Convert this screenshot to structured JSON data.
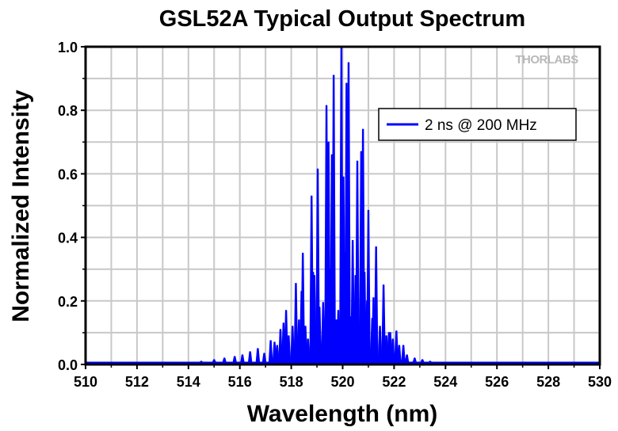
{
  "chart_data": {
    "type": "line",
    "title": "GSL52A Typical Output Spectrum",
    "xlabel": "Wavelength (nm)",
    "ylabel": "Normalized Intensity",
    "xlim": [
      510,
      530
    ],
    "ylim": [
      0,
      1.0
    ],
    "xticks": [
      "510",
      "512",
      "514",
      "516",
      "518",
      "520",
      "522",
      "524",
      "526",
      "528",
      "530"
    ],
    "yticks": [
      "0.0",
      "0.2",
      "0.4",
      "0.6",
      "0.8",
      "1.0"
    ],
    "grid": true,
    "legend_position": "top-right",
    "logo": "THORLABS",
    "series": [
      {
        "name": "2 ns @ 200 MHz",
        "color": "#0000ff",
        "peaks": [
          [
            514.5,
            0.01
          ],
          [
            515.0,
            0.015
          ],
          [
            515.4,
            0.02
          ],
          [
            515.8,
            0.025
          ],
          [
            516.1,
            0.03
          ],
          [
            516.4,
            0.04
          ],
          [
            516.7,
            0.05
          ],
          [
            516.95,
            0.035
          ],
          [
            517.2,
            0.075
          ],
          [
            517.35,
            0.07
          ],
          [
            517.45,
            0.06
          ],
          [
            517.58,
            0.11
          ],
          [
            517.7,
            0.13
          ],
          [
            517.8,
            0.17
          ],
          [
            517.9,
            0.09
          ],
          [
            518.05,
            0.12
          ],
          [
            518.18,
            0.255
          ],
          [
            518.3,
            0.14
          ],
          [
            518.4,
            0.23
          ],
          [
            518.45,
            0.35
          ],
          [
            518.55,
            0.12
          ],
          [
            518.65,
            0.08
          ],
          [
            518.79,
            0.53
          ],
          [
            518.85,
            0.29
          ],
          [
            518.9,
            0.28
          ],
          [
            519.03,
            0.615
          ],
          [
            519.1,
            0.18
          ],
          [
            519.24,
            0.195
          ],
          [
            519.3,
            0.1
          ],
          [
            519.37,
            0.815
          ],
          [
            519.45,
            0.7
          ],
          [
            519.5,
            0.3
          ],
          [
            519.58,
            0.66
          ],
          [
            519.65,
            0.91
          ],
          [
            519.75,
            0.14
          ],
          [
            519.83,
            0.17
          ],
          [
            519.95,
            1.0
          ],
          [
            520.03,
            0.59
          ],
          [
            520.1,
            0.35
          ],
          [
            520.15,
            0.885
          ],
          [
            520.23,
            0.95
          ],
          [
            520.3,
            0.15
          ],
          [
            520.39,
            0.39
          ],
          [
            520.5,
            0.28
          ],
          [
            520.57,
            0.64
          ],
          [
            520.72,
            0.67
          ],
          [
            520.79,
            0.74
          ],
          [
            520.85,
            0.29
          ],
          [
            520.95,
            0.2
          ],
          [
            521.0,
            0.485
          ],
          [
            521.15,
            0.145
          ],
          [
            521.2,
            0.21
          ],
          [
            521.3,
            0.37
          ],
          [
            521.45,
            0.12
          ],
          [
            521.59,
            0.25
          ],
          [
            521.7,
            0.09
          ],
          [
            521.8,
            0.1
          ],
          [
            521.85,
            0.1
          ],
          [
            521.95,
            0.08
          ],
          [
            522.09,
            0.105
          ],
          [
            522.2,
            0.06
          ],
          [
            522.36,
            0.06
          ],
          [
            522.5,
            0.03
          ],
          [
            522.8,
            0.02
          ],
          [
            523.1,
            0.015
          ],
          [
            523.4,
            0.01
          ]
        ]
      }
    ]
  }
}
